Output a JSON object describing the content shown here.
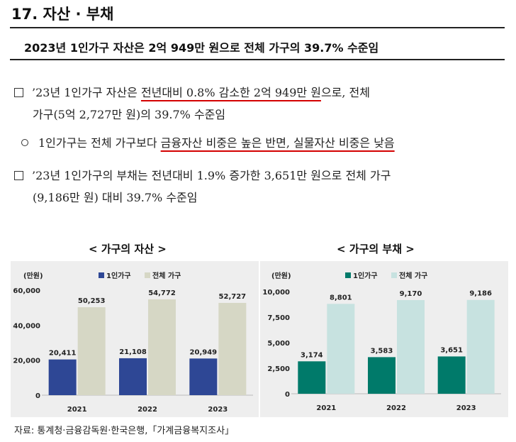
{
  "section": {
    "title": "17. 자산 · 부채"
  },
  "subtitle": "2023년 1인가구 자산은 2억 949만 원으로 전체 가구의 39.7% 수준임",
  "paragraphs": {
    "p1": {
      "line1_a": "’23년 1인가구 자산은 ",
      "line1_u": "전년대비 0.8% 감소한 2억 949만 원",
      "line1_b": "으로, 전체",
      "line2": "가구(5억 2,727만 원)의 39.7% 수준임"
    },
    "p2": {
      "a": "1인가구는 전체 가구보다 ",
      "u": "금융자산 비중은 높은 반면, 실물자산 비중은 낮음"
    },
    "p3": {
      "line1": "’23년 1인가구의 부채는 전년대비 1.9% 증가한 3,651만 원으로 전체 가구",
      "line2": "(9,186만 원) 대비 39.7% 수준임"
    }
  },
  "chart_data": [
    {
      "type": "bar",
      "title": "< 가구의 자산 >",
      "ylabel": "(만원)",
      "categories": [
        "2021",
        "2022",
        "2023"
      ],
      "series": [
        {
          "name": "1인가구",
          "values": [
            20411,
            21108,
            20949
          ],
          "labels": [
            "20,411",
            "21,108",
            "20,949"
          ],
          "color": "#2e4795"
        },
        {
          "name": "전체 가구",
          "values": [
            50253,
            54772,
            52727
          ],
          "labels": [
            "50,253",
            "54,772",
            "52,727"
          ],
          "color": "#d6d7c5"
        }
      ],
      "yticks": [
        "0",
        "20,000",
        "40,000",
        "60,000"
      ],
      "ytick_values": [
        0,
        20000,
        40000,
        60000
      ],
      "ylim": [
        0,
        60000
      ],
      "legend": "top-left",
      "grid": false
    },
    {
      "type": "bar",
      "title": "< 가구의 부채 >",
      "ylabel": "(만원)",
      "categories": [
        "2021",
        "2022",
        "2023"
      ],
      "series": [
        {
          "name": "1인가구",
          "values": [
            3174,
            3583,
            3651
          ],
          "labels": [
            "3,174",
            "3,583",
            "3,651"
          ],
          "color": "#007a6a"
        },
        {
          "name": "전체 가구",
          "values": [
            8801,
            9170,
            9186
          ],
          "labels": [
            "8,801",
            "9,170",
            "9,186"
          ],
          "color": "#c7e2e0"
        }
      ],
      "yticks": [
        "0",
        "2,500",
        "5,000",
        "7,500",
        "10,000"
      ],
      "ytick_values": [
        0,
        2500,
        5000,
        7500,
        10000
      ],
      "ylim": [
        0,
        10000
      ],
      "legend": "top-left",
      "grid": false
    }
  ],
  "source": "자료: 통계청·금융감독원·한국은행,「가계금융복지조사」"
}
